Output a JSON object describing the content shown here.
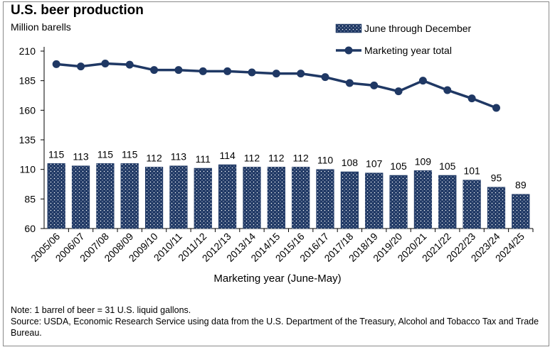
{
  "title": "U.S. beer production",
  "unit_label": "Million barells",
  "chart_data": {
    "type": "bar+line",
    "title": "U.S. beer production",
    "ylabel": "Million barells",
    "xlabel": "Marketing year (June-May)",
    "ylim": [
      60,
      210
    ],
    "yticks": [
      60,
      85,
      110,
      135,
      160,
      185,
      210
    ],
    "grid": false,
    "legend_position": "top-right",
    "categories": [
      "2005/06",
      "2006/07",
      "2007/08",
      "2008/09",
      "2009/10",
      "2010/11",
      "2011/12",
      "2012/13",
      "2013/14",
      "2014/15",
      "2015/16",
      "2016/17",
      "2017/18",
      "2018/19",
      "2019/20",
      "2020/21",
      "2021/22",
      "2022/23",
      "2023/24",
      "2024/25"
    ],
    "series": [
      {
        "name": "June through December",
        "type": "bar",
        "color": "#1f3864",
        "values": [
          115,
          113,
          115,
          115,
          112,
          113,
          111,
          114,
          112,
          112,
          112,
          110,
          108,
          107,
          105,
          109,
          105,
          101,
          95,
          89
        ]
      },
      {
        "name": "Marketing year total",
        "type": "line",
        "color": "#1f3864",
        "values": [
          199,
          197,
          199.5,
          198.5,
          194,
          194,
          193,
          193,
          192,
          191,
          191,
          188,
          183,
          181,
          176,
          185,
          177,
          170,
          162,
          null
        ]
      }
    ]
  },
  "note": "Note: 1 barrel of beer = 31 U.S. liquid gallons.",
  "source": "Source: USDA, Economic Research Service using data from the U.S. Department of the Treasury, Alcohol and Tobacco Tax and Trade Bureau."
}
